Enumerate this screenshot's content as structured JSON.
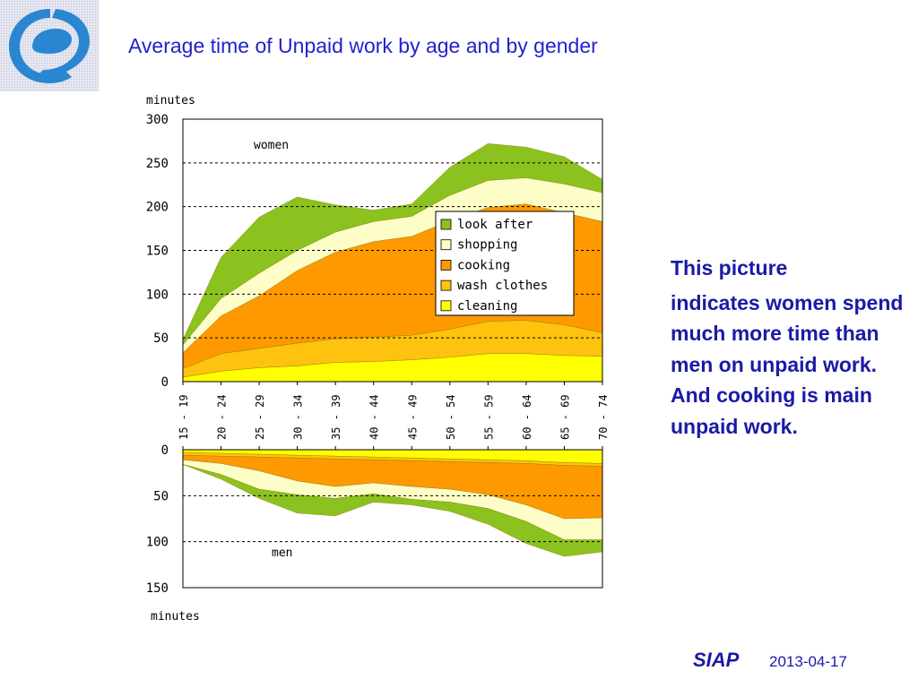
{
  "slide": {
    "title": "Average time of Unpaid work by age and by gender",
    "side_text_line1": "This  picture",
    "side_text_body": "indicates women spend much more time than men on unpaid work. And cooking is main unpaid work.",
    "footer_brand": "SIAP",
    "footer_date": "2013-04-17"
  },
  "colors": {
    "look after": "#8cc21f",
    "shopping": "#fdfdc8",
    "cooking": "#ff9900",
    "wash clothes": "#ffc20e",
    "cleaning": "#ffff00",
    "logo": "#2a86d0",
    "text": "#1a1aa6"
  },
  "chart_data": [
    {
      "type": "area",
      "stacked": true,
      "panel_label": "women",
      "ylabel": "minutes",
      "ylim": [
        0,
        300
      ],
      "yticks": [
        "0",
        "50",
        "100",
        "150",
        "200",
        "250",
        "300"
      ],
      "grid": "dashed horizontal at 50, 100, 150, 200, 250",
      "legend_position": "inside, center-right",
      "categories": [
        "15 - 19",
        "20 - 24",
        "25 - 29",
        "30 - 34",
        "35 - 39",
        "40 - 44",
        "45 - 49",
        "50 - 54",
        "55 - 59",
        "60 - 64",
        "65 - 69",
        "70 - 74"
      ],
      "series": [
        {
          "name": "cleaning",
          "values": [
            5,
            12,
            16,
            18,
            22,
            23,
            25,
            28,
            32,
            32,
            30,
            29
          ]
        },
        {
          "name": "wash clothes",
          "values": [
            10,
            20,
            22,
            26,
            27,
            28,
            28,
            32,
            37,
            38,
            35,
            27
          ]
        },
        {
          "name": "cooking",
          "values": [
            18,
            43,
            60,
            83,
            99,
            109,
            113,
            124,
            130,
            133,
            128,
            127
          ]
        },
        {
          "name": "shopping",
          "values": [
            9,
            20,
            26,
            23,
            23,
            23,
            23,
            29,
            31,
            30,
            33,
            33
          ]
        },
        {
          "name": "look after",
          "values": [
            6,
            47,
            64,
            61,
            31,
            13,
            14,
            32,
            42,
            35,
            31,
            15
          ]
        }
      ]
    },
    {
      "type": "area",
      "stacked": true,
      "panel_label": "men",
      "ylabel": "minutes",
      "ylim": [
        0,
        150
      ],
      "yticks": [
        "0",
        "50",
        "100",
        "150"
      ],
      "grid": "dashed horizontal at 50, 100",
      "categories": [
        "15 - 19",
        "20 - 24",
        "25 - 29",
        "30 - 34",
        "35 - 39",
        "40 - 44",
        "45 - 49",
        "50 - 54",
        "55 - 59",
        "60 - 64",
        "65 - 69",
        "70 - 74"
      ],
      "series": [
        {
          "name": "cleaning",
          "values": [
            3,
            4,
            5,
            6,
            7,
            8,
            9,
            10,
            11,
            12,
            14,
            15
          ]
        },
        {
          "name": "wash clothes",
          "values": [
            3,
            3,
            3,
            3,
            3,
            3,
            3,
            3,
            3,
            3,
            3,
            3
          ]
        },
        {
          "name": "cooking",
          "values": [
            5,
            8,
            15,
            25,
            30,
            25,
            28,
            30,
            35,
            45,
            58,
            56
          ]
        },
        {
          "name": "shopping",
          "values": [
            5,
            12,
            20,
            15,
            13,
            12,
            14,
            14,
            15,
            18,
            23,
            24
          ]
        },
        {
          "name": "look after",
          "values": [
            0,
            5,
            10,
            20,
            19,
            9,
            6,
            10,
            17,
            24,
            18,
            13
          ]
        }
      ]
    }
  ],
  "legend": [
    "look after",
    "shopping",
    "cooking",
    "wash clothes",
    "cleaning"
  ]
}
